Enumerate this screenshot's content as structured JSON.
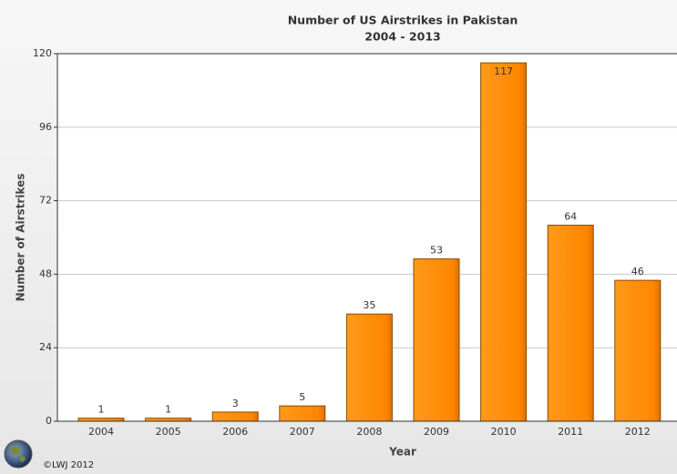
{
  "chart_data": {
    "type": "bar",
    "title": "Number of US Airstrikes in Pakistan",
    "subtitle": "2004 - 2013",
    "x_label": "Year",
    "y_label": "Number of Airstrikes",
    "categories": [
      "2004",
      "2005",
      "2006",
      "2007",
      "2008",
      "2009",
      "2010",
      "2011",
      "2012"
    ],
    "values": [
      1,
      1,
      3,
      5,
      35,
      53,
      117,
      64,
      46
    ],
    "color": "#ff8a00",
    "ylim": [
      0,
      120
    ],
    "yticks": [
      0,
      24,
      48,
      72,
      96,
      120
    ],
    "grid": true,
    "credit": "©LWJ 2012"
  }
}
